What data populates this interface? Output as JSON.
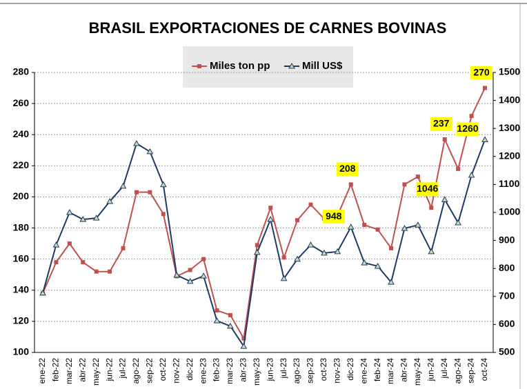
{
  "chart_data": {
    "type": "line",
    "title": "BRASIL EXPORTACIONES DE CARNES BOVINAS",
    "categories": [
      "ene-22",
      "feb-22",
      "mar-22",
      "abr-22",
      "may-22",
      "jun-22",
      "jul-22",
      "ago-22",
      "sep-22",
      "oct-22",
      "nov-22",
      "dic-22",
      "ene-23",
      "feb-23",
      "mar-23",
      "abr-23",
      "may-23",
      "jun-23",
      "jul-23",
      "ago-23",
      "sep-23",
      "oct-23",
      "nov-23",
      "dic-23",
      "ene-24",
      "feb-24",
      "mar-24",
      "abr-24",
      "may-24",
      "jun-24",
      "jul-24",
      "ago-24",
      "sep-24",
      "oct-24"
    ],
    "series": [
      {
        "name": "Miles ton pp",
        "color": "#c0504d",
        "axis": "y",
        "values": [
          138,
          158,
          170,
          158,
          152,
          152,
          167,
          203,
          203,
          189,
          149,
          153,
          160,
          127,
          124,
          109,
          169,
          193,
          161,
          185,
          195,
          186,
          188,
          208,
          182,
          179,
          167,
          208,
          213,
          193,
          237,
          218,
          252,
          270
        ],
        "value_labels": [
          null,
          null,
          null,
          null,
          null,
          null,
          null,
          null,
          null,
          null,
          null,
          null,
          null,
          null,
          null,
          null,
          null,
          null,
          null,
          null,
          null,
          null,
          null,
          "208",
          null,
          null,
          null,
          null,
          null,
          null,
          "237",
          null,
          null,
          "270"
        ]
      },
      {
        "name": "Mill US$",
        "color": "#1f3864",
        "axis": "y2",
        "values": [
          712,
          884,
          1000,
          975,
          980,
          1039,
          1094,
          1246,
          1217,
          1099,
          776,
          754,
          773,
          613,
          594,
          522,
          857,
          975,
          764,
          833,
          884,
          855,
          860,
          948,
          820,
          808,
          751,
          943,
          955,
          860,
          1046,
          963,
          1133,
          1260
        ],
        "value_labels": [
          null,
          null,
          null,
          null,
          null,
          null,
          null,
          null,
          null,
          null,
          null,
          null,
          null,
          null,
          null,
          null,
          null,
          null,
          null,
          null,
          null,
          null,
          null,
          "948",
          null,
          null,
          null,
          null,
          null,
          null,
          "1046",
          null,
          null,
          "1260"
        ]
      }
    ],
    "ylim": [
      100,
      280
    ],
    "yticks": [
      100,
      120,
      140,
      160,
      180,
      200,
      220,
      240,
      260,
      280
    ],
    "y2lim": [
      500,
      1500
    ],
    "y2ticks": [
      500,
      600,
      700,
      800,
      900,
      1000,
      1100,
      1200,
      1300,
      1400,
      1500
    ],
    "grid": true,
    "legend": "top"
  }
}
